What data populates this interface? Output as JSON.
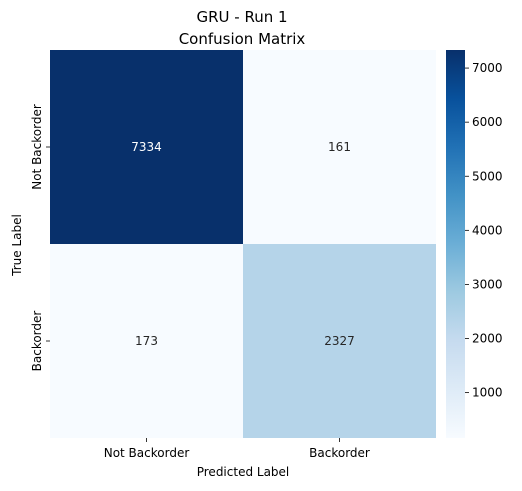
{
  "chart_data": {
    "type": "heatmap",
    "title": "GRU - Run 1",
    "subtitle": "Confusion Matrix",
    "xlabel": "Predicted Label",
    "ylabel": "True Label",
    "x_categories": [
      "Not Backorder",
      "Backorder"
    ],
    "y_categories": [
      "Not Backorder",
      "Backorder"
    ],
    "values": [
      [
        7334,
        161
      ],
      [
        173,
        2327
      ]
    ],
    "colormap": "Blues",
    "colorbar": {
      "range": [
        161,
        7334
      ],
      "ticks": [
        1000,
        2000,
        3000,
        4000,
        5000,
        6000,
        7000
      ]
    },
    "grid": false,
    "legend": "colorbar-right"
  }
}
